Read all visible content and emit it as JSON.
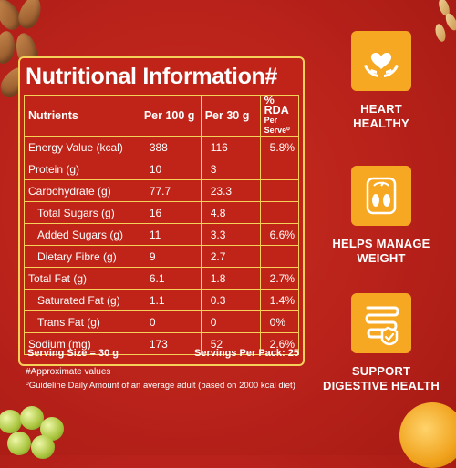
{
  "panel": {
    "title": "Nutritional Information#",
    "headers": {
      "nutrients": "Nutrients",
      "per100": "Per 100 g",
      "per30": "Per 30 g",
      "rda": "% RDA",
      "rda_sub": "Per Serve⁰"
    },
    "rows": [
      {
        "name": "Energy Value (kcal)",
        "per100": "388",
        "per30": "116",
        "rda": "5.8%"
      },
      {
        "name": "Protein (g)",
        "per100": "10",
        "per30": "3",
        "rda": ""
      },
      {
        "name": "Carbohydrate (g)",
        "per100": "77.7",
        "per30": "23.3",
        "rda": ""
      },
      {
        "name": "Total Sugars (g)",
        "per100": "16",
        "per30": "4.8",
        "rda": ""
      },
      {
        "name": "Added Sugars (g)",
        "per100": "11",
        "per30": "3.3",
        "rda": "6.6%"
      },
      {
        "name": "Dietary Fibre (g)",
        "per100": "9",
        "per30": "2.7",
        "rda": ""
      },
      {
        "name": "Total Fat (g)",
        "per100": "6.1",
        "per30": "1.8",
        "rda": "2.7%"
      },
      {
        "name": "Saturated Fat (g)",
        "per100": "1.1",
        "per30": "0.3",
        "rda": "1.4%"
      },
      {
        "name": "Trans Fat (g)",
        "per100": "0",
        "per30": "0",
        "rda": "0%"
      },
      {
        "name": "Sodium (mg)",
        "per100": "173",
        "per30": "52",
        "rda": "2.6%"
      }
    ],
    "serving_size": "Serving Size = 30 g",
    "servings_per_pack": "Servings Per Pack: 25",
    "approx_note": "#Approximate values",
    "guideline_note": "⁰Guideline Daily Amount of an average adult (based on 2000 kcal diet)"
  },
  "benefits": [
    {
      "label_line1": "HEART",
      "label_line2": "HEALTHY",
      "icon": "heart-hands-icon"
    },
    {
      "label_line1": "HELPS MANAGE",
      "label_line2": "WEIGHT",
      "icon": "weighing-scale-icon"
    },
    {
      "label_line1": "SUPPORT",
      "label_line2": "DIGESTIVE HEALTH",
      "icon": "digestive-icon"
    }
  ],
  "colors": {
    "background": "#b8221a",
    "panel_border": "#f5d15a",
    "badge": "#f7a823",
    "text": "#ffffff"
  }
}
